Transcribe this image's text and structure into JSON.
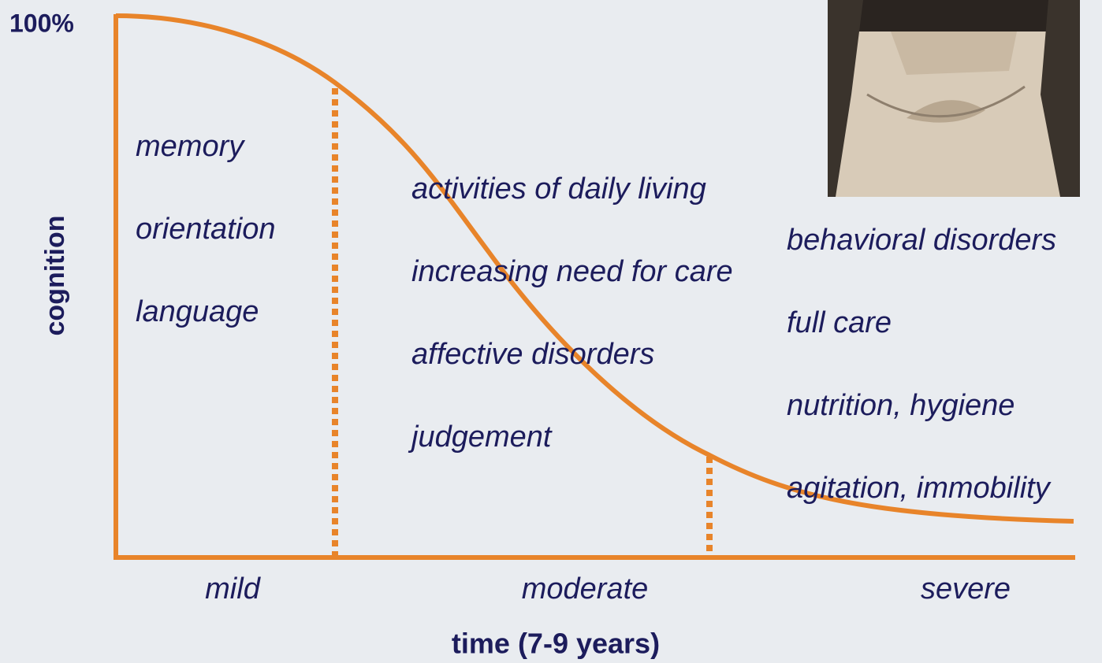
{
  "y_axis": {
    "top_label": "100%",
    "title": "cognition"
  },
  "x_axis": {
    "title": "time (7-9 years)"
  },
  "stages": [
    {
      "name": "mild",
      "items": [
        "memory",
        "orientation",
        "language"
      ]
    },
    {
      "name": "moderate",
      "items": [
        "activities of daily living",
        "increasing need for care",
        "affective disorders",
        "judgement"
      ]
    },
    {
      "name": "severe",
      "items": [
        "behavioral disorders",
        "full care",
        "nutrition, hygiene",
        "agitation, immobility"
      ]
    }
  ]
}
